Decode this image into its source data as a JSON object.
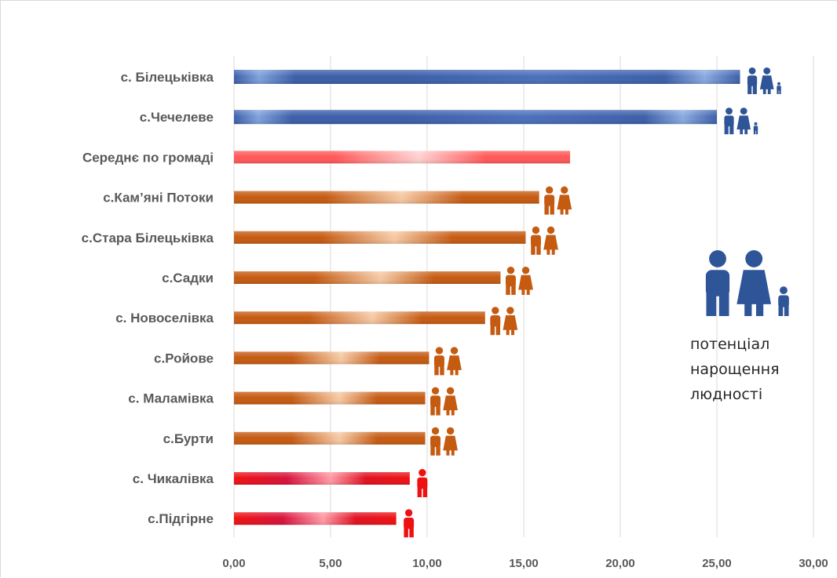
{
  "chart_data": {
    "type": "bar",
    "orientation": "horizontal",
    "categories": [
      "с. Білецьківка",
      "с.Чечелеве",
      "Середнє по громаді",
      "с.Кам’яні Потоки",
      "с.Стара Білецьківка",
      "с.Садки",
      "с. Новоселівка",
      "с.Ройове",
      "с. Маламівка",
      "с.Бурти",
      "с. Чикалівка",
      "с.Підгірне"
    ],
    "values": [
      26.2,
      25.0,
      17.4,
      15.8,
      15.1,
      13.8,
      13.0,
      10.1,
      9.9,
      9.9,
      9.1,
      8.4
    ],
    "bar_groups": [
      "blue",
      "blue",
      "average",
      "orange",
      "orange",
      "orange",
      "orange",
      "orange",
      "orange",
      "orange",
      "red",
      "red"
    ],
    "icons": [
      "family-icon",
      "family-icon",
      "",
      "couple-icon",
      "couple-icon",
      "couple-icon",
      "couple-icon",
      "couple-icon",
      "couple-icon",
      "couple-icon",
      "person-icon",
      "person-icon"
    ],
    "xlim": [
      0,
      30
    ],
    "xticks": [
      "0,00",
      "5,00",
      "10,00",
      "15,00",
      "20,00",
      "25,00",
      "30,00"
    ],
    "grid": "vertical",
    "colors": {
      "blue": "#3a5ea8",
      "blue_light": "#7fa1dc",
      "orange": "#c55a11",
      "orange_light": "#f6c9a4",
      "average": "#ff5757",
      "average_light": "#ffd0d0",
      "red": "#ee1111",
      "red_light": "#ff9aa6",
      "icon_blue": "#2e5597",
      "icon_orange": "#c55a11",
      "icon_red": "#ee1111",
      "grid": "#d9d9d9"
    },
    "legend": {
      "icon": "family-icon",
      "lines": [
        "потенціал",
        "нарощення",
        "людності"
      ]
    }
  }
}
